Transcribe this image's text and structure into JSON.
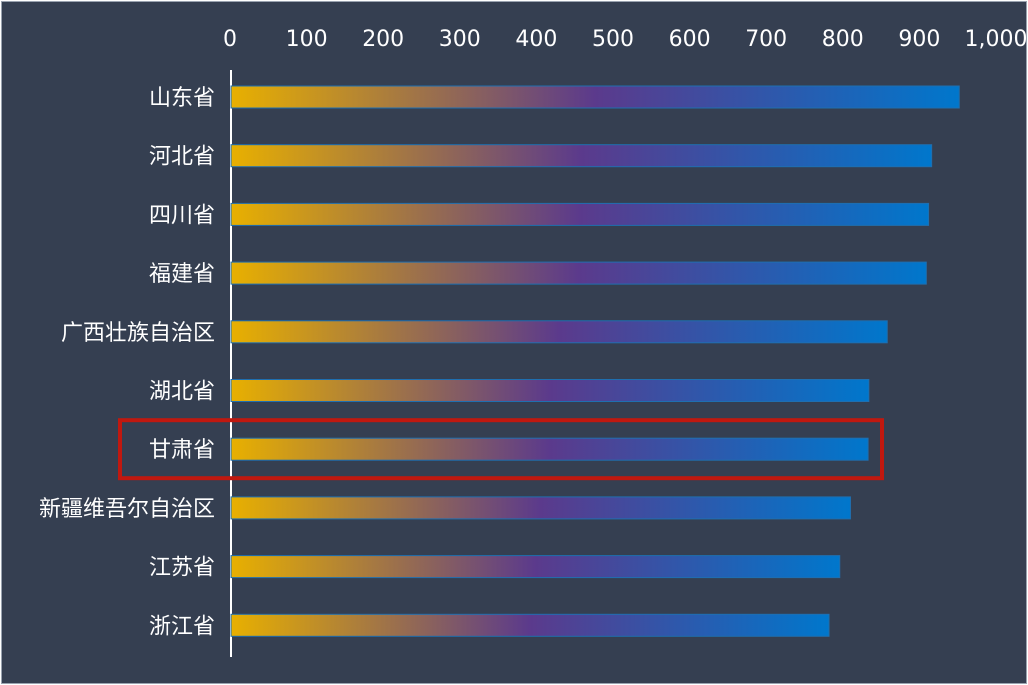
{
  "chart_data": {
    "type": "bar",
    "orientation": "horizontal",
    "categories": [
      "山东省",
      "河北省",
      "四川省",
      "福建省",
      "广西壮族自治区",
      "湖北省",
      "甘肃省",
      "新疆维吾尔自治区",
      "江苏省",
      "浙江省"
    ],
    "values": [
      952,
      916,
      912,
      909,
      858,
      834,
      833,
      810,
      796,
      782
    ],
    "xlim": [
      0,
      1000
    ],
    "xticks": [
      "0",
      "100",
      "200",
      "300",
      "400",
      "500",
      "600",
      "700",
      "800",
      "900",
      "1,000"
    ],
    "xaxis_position": "top",
    "grid": false,
    "legend": "none",
    "highlighted_category": "甘肃省",
    "colors": {
      "background": "#353f51",
      "gradient_start": "#e8b000",
      "gradient_mid": "#5b3a8c",
      "gradient_end": "#0077cc",
      "highlight_box": "#c0180f",
      "axis": "#ffffff",
      "text": "#ffffff"
    }
  }
}
